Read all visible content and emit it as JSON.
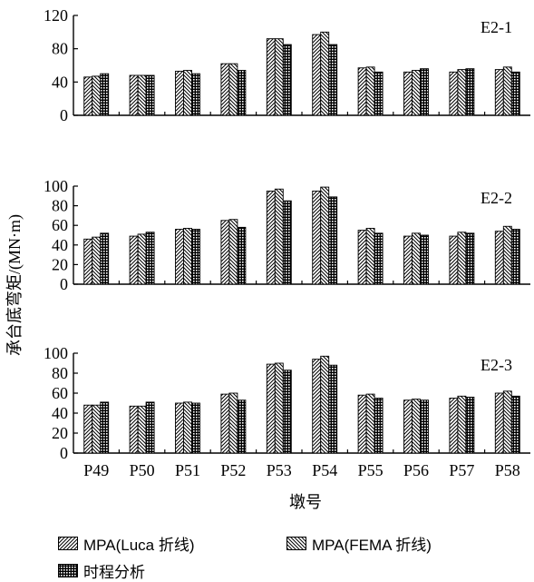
{
  "chart_data": {
    "type": "bar",
    "ylabel": "承台底弯矩/(MN·m)",
    "xlabel": "墩号",
    "categories": [
      "P49",
      "P50",
      "P51",
      "P52",
      "P53",
      "P54",
      "P55",
      "P56",
      "P57",
      "P58"
    ],
    "legend": [
      "MPA(Luca 折线)",
      "MPA(FEMA 折线)",
      "时程分析"
    ],
    "panels": [
      {
        "label": "E2-1",
        "ylim": [
          0,
          120
        ],
        "yticks": [
          "0",
          "40",
          "80",
          "120"
        ],
        "series": [
          {
            "name": "MPA(Luca 折线)",
            "values": [
              46,
              48,
              53,
              62,
              92,
              97,
              57,
              52,
              52,
              55
            ]
          },
          {
            "name": "MPA(FEMA 折线)",
            "values": [
              47,
              48,
              54,
              62,
              92,
              100,
              58,
              54,
              55,
              58
            ]
          },
          {
            "name": "时程分析",
            "values": [
              50,
              48,
              50,
              54,
              85,
              85,
              52,
              56,
              56,
              52
            ]
          }
        ]
      },
      {
        "label": "E2-2",
        "ylim": [
          0,
          100
        ],
        "yticks": [
          "0",
          "20",
          "40",
          "60",
          "80",
          "100"
        ],
        "series": [
          {
            "name": "MPA(Luca 折线)",
            "values": [
              46,
              49,
              56,
              65,
              95,
              95,
              55,
              49,
              49,
              54
            ]
          },
          {
            "name": "MPA(FEMA 折线)",
            "values": [
              48,
              51,
              57,
              66,
              97,
              99,
              57,
              52,
              53,
              59
            ]
          },
          {
            "name": "时程分析",
            "values": [
              52,
              53,
              56,
              58,
              85,
              89,
              52,
              50,
              52,
              56
            ]
          }
        ]
      },
      {
        "label": "E2-3",
        "ylim": [
          0,
          100
        ],
        "yticks": [
          "0",
          "20",
          "40",
          "60",
          "80",
          "100"
        ],
        "series": [
          {
            "name": "MPA(Luca 折线)",
            "values": [
              48,
              47,
              50,
              59,
              89,
              94,
              58,
              53,
              55,
              60
            ]
          },
          {
            "name": "MPA(FEMA 折线)",
            "values": [
              48,
              47,
              51,
              60,
              90,
              97,
              59,
              54,
              57,
              62
            ]
          },
          {
            "name": "时程分析",
            "values": [
              51,
              51,
              50,
              53,
              83,
              88,
              55,
              53,
              56,
              57
            ]
          }
        ]
      }
    ]
  }
}
